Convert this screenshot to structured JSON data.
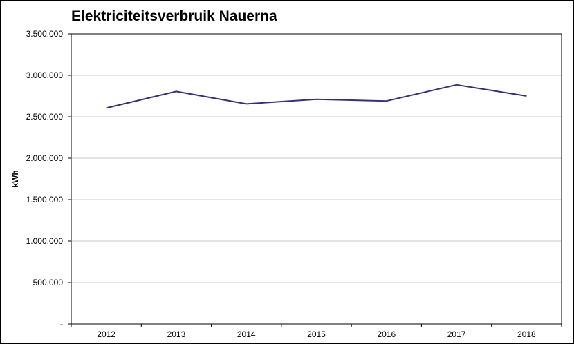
{
  "chart_data": {
    "type": "line",
    "title": "Elektriciteitsverbruik Nauerna",
    "xlabel": "",
    "ylabel": "kWh",
    "categories": [
      "2012",
      "2013",
      "2014",
      "2015",
      "2016",
      "2017",
      "2018"
    ],
    "series": [
      {
        "values": [
          2605000,
          2805000,
          2655000,
          2710000,
          2690000,
          2885000,
          2750000
        ],
        "color": "#3b2a86"
      }
    ],
    "ylim": [
      0,
      3500000
    ],
    "yticks": [
      0,
      500000,
      1000000,
      1500000,
      2000000,
      2500000,
      3000000,
      3500000
    ],
    "ytick_labels": [
      "-",
      "500.000",
      "1.000.000",
      "1.500.000",
      "2.000.000",
      "2.500.000",
      "3.000.000",
      "3.500.000"
    ],
    "grid": true,
    "legend": false
  }
}
